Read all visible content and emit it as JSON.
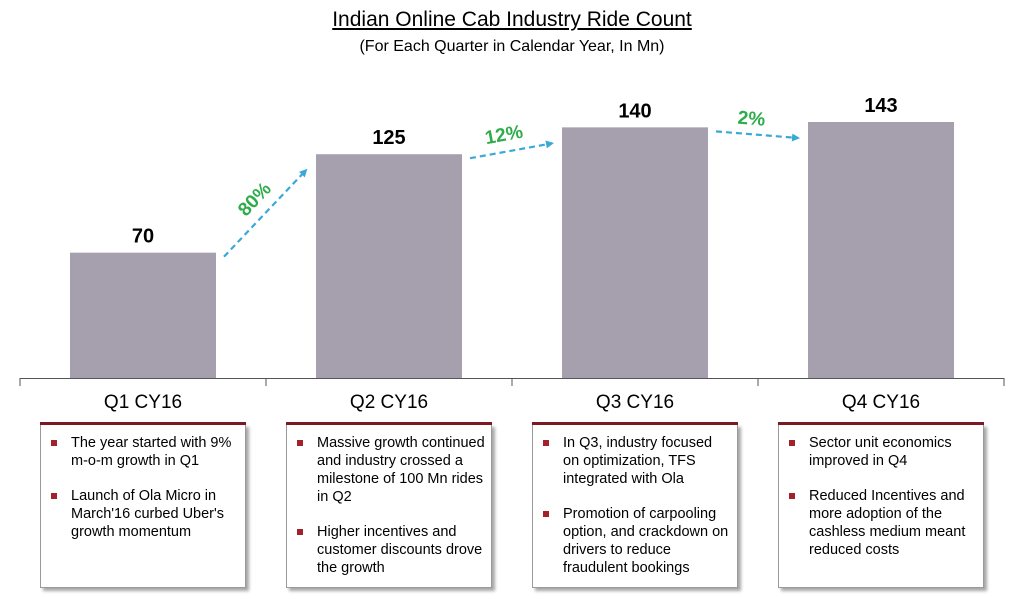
{
  "chart_data": {
    "type": "bar",
    "title": "Indian Online Cab Industry Ride Count",
    "subtitle": "(For Each Quarter in Calendar Year, In Mn)",
    "categories": [
      "Q1 CY16",
      "Q2 CY16",
      "Q3 CY16",
      "Q4 CY16"
    ],
    "values": [
      70,
      125,
      140,
      143
    ],
    "data_labels": [
      "70",
      "125",
      "140",
      "143"
    ],
    "growth_annotations": [
      "80%",
      "12%",
      "2%"
    ],
    "ylim": [
      0,
      143
    ],
    "grid": false,
    "bar_color": "#a59fae",
    "growth_color": "#2eab4a",
    "arrow_color": "#3ba9d6"
  },
  "notes": [
    {
      "quarter": "Q1 CY16",
      "bullets": [
        "The year started with 9% m-o-m growth in Q1",
        "Launch of Ola Micro in March'16 curbed Uber's growth momentum"
      ]
    },
    {
      "quarter": "Q2 CY16",
      "bullets": [
        "Massive growth continued and industry crossed a milestone of 100 Mn rides in Q2",
        "Higher incentives and customer discounts drove the growth"
      ]
    },
    {
      "quarter": "Q3 CY16",
      "bullets": [
        "In Q3, industry focused on optimization, TFS integrated with Ola",
        "Promotion of carpooling option, and crackdown on drivers to reduce fraudulent bookings"
      ]
    },
    {
      "quarter": "Q4 CY16",
      "bullets": [
        "Sector unit economics improved in Q4",
        "Reduced Incentives and more adoption of the cashless medium meant reduced costs"
      ]
    }
  ],
  "colors": {
    "accent": "#7a1a22",
    "bullet": "#a3212b"
  }
}
